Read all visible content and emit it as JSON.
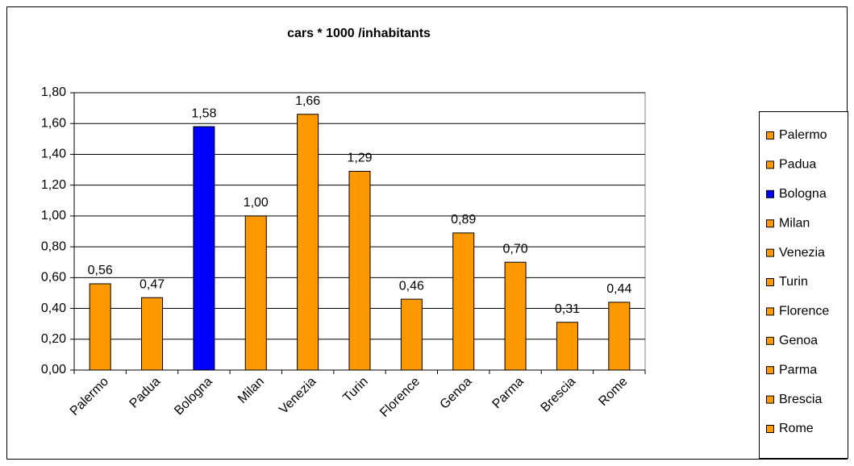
{
  "chart_data": {
    "type": "bar",
    "title": "cars * 1000 /inhabitants",
    "categories": [
      "Palermo",
      "Padua",
      "Bologna",
      "Milan",
      "Venezia",
      "Turin",
      "Florence",
      "Genoa",
      "Parma",
      "Brescia",
      "Rome"
    ],
    "values": [
      0.56,
      0.47,
      1.58,
      1.0,
      1.66,
      1.29,
      0.46,
      0.89,
      0.7,
      0.31,
      0.44
    ],
    "value_labels": [
      "0,56",
      "0,47",
      "1,58",
      "1,00",
      "1,66",
      "1,29",
      "0,46",
      "0,89",
      "0,70",
      "0,31",
      "0,44"
    ],
    "colors": [
      "#ff9900",
      "#ff9900",
      "#0000ff",
      "#ff9900",
      "#ff9900",
      "#ff9900",
      "#ff9900",
      "#ff9900",
      "#ff9900",
      "#ff9900",
      "#ff9900"
    ],
    "ylim": [
      0,
      1.8
    ],
    "yticks": [
      {
        "value": 0,
        "label": "0,00"
      },
      {
        "value": 0.2,
        "label": "0,20"
      },
      {
        "value": 0.4,
        "label": "0,40"
      },
      {
        "value": 0.6,
        "label": "0,60"
      },
      {
        "value": 0.8,
        "label": "0,80"
      },
      {
        "value": 1.0,
        "label": "1,00"
      },
      {
        "value": 1.2,
        "label": "1,20"
      },
      {
        "value": 1.4,
        "label": "1,40"
      },
      {
        "value": 1.6,
        "label": "1,60"
      },
      {
        "value": 1.8,
        "label": "1,80"
      }
    ],
    "grid": true,
    "legend": "right"
  }
}
